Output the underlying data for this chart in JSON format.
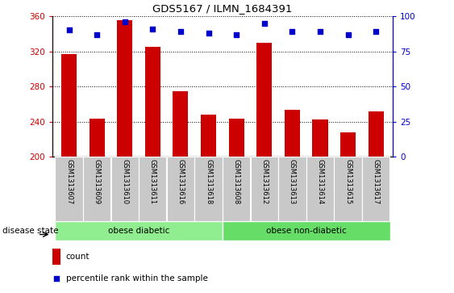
{
  "title": "GDS5167 / ILMN_1684391",
  "samples": [
    "GSM1313607",
    "GSM1313609",
    "GSM1313610",
    "GSM1313611",
    "GSM1313616",
    "GSM1313618",
    "GSM1313608",
    "GSM1313612",
    "GSM1313613",
    "GSM1313614",
    "GSM1313615",
    "GSM1313617"
  ],
  "counts": [
    317,
    243,
    355,
    325,
    275,
    248,
    243,
    330,
    253,
    242,
    228,
    252
  ],
  "percentile_ranks": [
    90,
    87,
    96,
    91,
    89,
    88,
    87,
    95,
    89,
    89,
    87,
    89
  ],
  "bar_color": "#cc0000",
  "dot_color": "#0000cc",
  "ylim_left": [
    200,
    360
  ],
  "ylim_right": [
    0,
    100
  ],
  "yticks_left": [
    200,
    240,
    280,
    320,
    360
  ],
  "yticks_right": [
    0,
    25,
    50,
    75,
    100
  ],
  "groups": [
    {
      "label": "obese diabetic",
      "start": 0,
      "end": 6,
      "color": "#90ee90"
    },
    {
      "label": "obese non-diabetic",
      "start": 6,
      "end": 12,
      "color": "#66dd66"
    }
  ],
  "legend_count_label": "count",
  "legend_percentile_label": "percentile rank within the sample",
  "disease_state_label": "disease state",
  "label_bg_color": "#c8c8c8",
  "group_border_color": "#ffffff"
}
